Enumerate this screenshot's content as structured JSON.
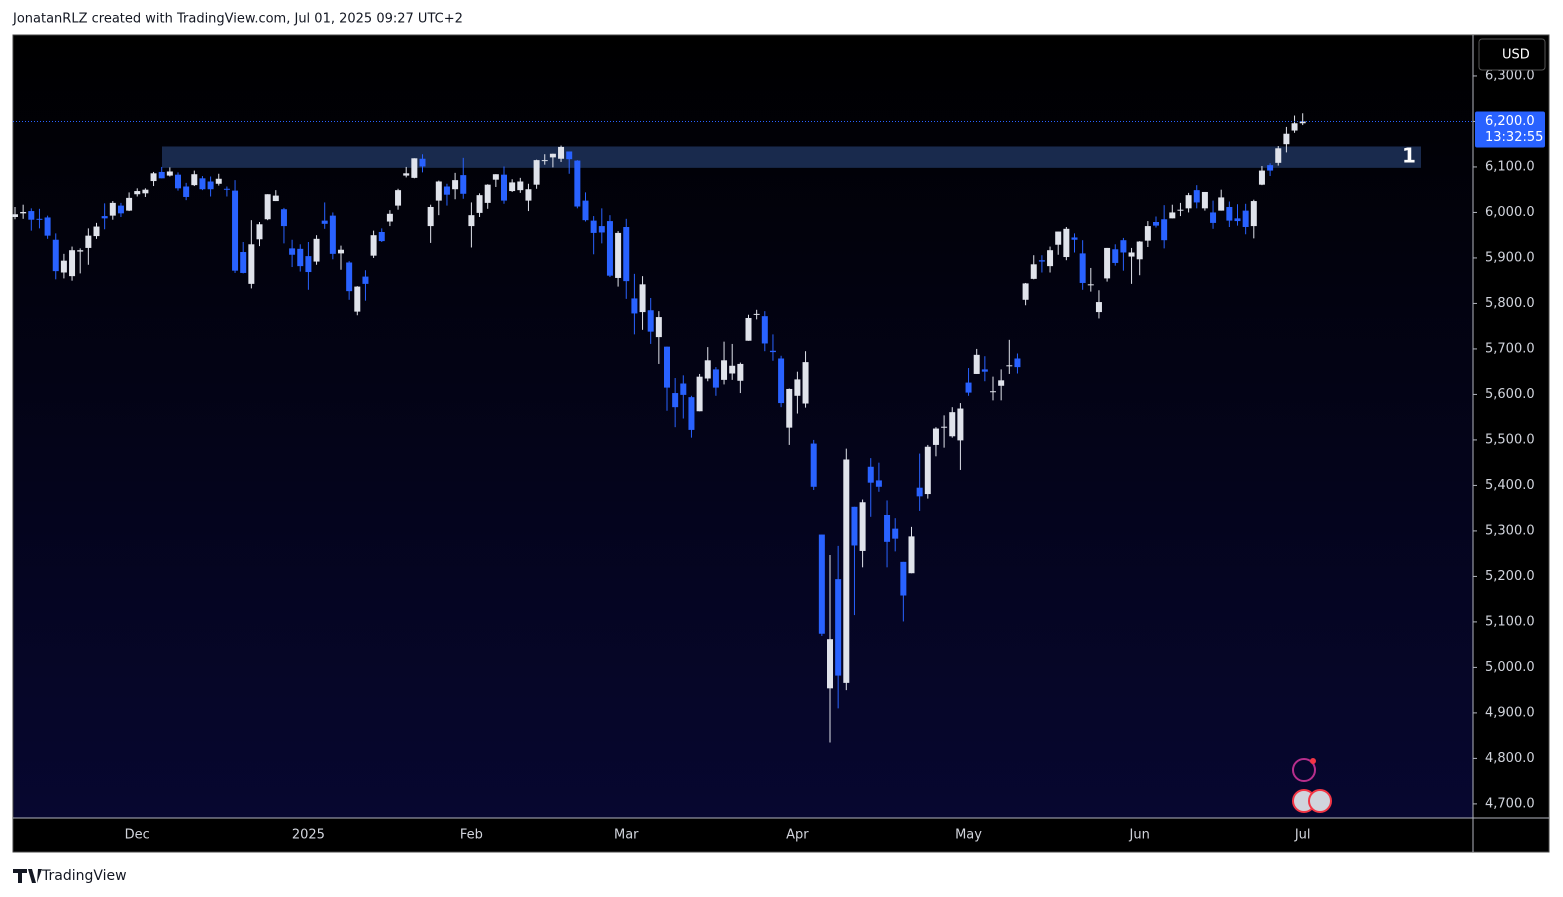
{
  "header": "JonatanRLZ created with TradingView.com, Jul 01, 2025 09:27 UTC+2",
  "footer": "TradingView",
  "chart_data": {
    "type": "candlestick",
    "currency": "USD",
    "categories": [
      null,
      null,
      null,
      null,
      null,
      null,
      null,
      null,
      null,
      null,
      null,
      null,
      null,
      null,
      null,
      "Dec",
      null,
      null,
      null,
      null,
      null,
      null,
      null,
      null,
      null,
      null,
      null,
      null,
      null,
      null,
      null,
      null,
      null,
      null,
      null,
      null,
      "2025",
      null,
      null,
      null,
      null,
      null,
      null,
      null,
      null,
      null,
      null,
      null,
      null,
      null,
      null,
      null,
      null,
      null,
      null,
      null,
      "Feb",
      null,
      null,
      null,
      null,
      null,
      null,
      null,
      null,
      null,
      null,
      null,
      null,
      null,
      null,
      null,
      null,
      null,
      null,
      "Mar",
      null,
      null,
      null,
      null,
      null,
      null,
      null,
      null,
      null,
      null,
      null,
      null,
      null,
      null,
      null,
      null,
      null,
      null,
      null,
      null,
      "Apr",
      null,
      null,
      null,
      null,
      null,
      null,
      null,
      null,
      null,
      null,
      null,
      null,
      null,
      null,
      null,
      null,
      null,
      null,
      null,
      null,
      "May",
      null,
      null,
      null,
      null,
      null,
      null,
      null,
      null,
      null,
      null,
      null,
      null,
      null,
      null,
      null,
      null,
      null,
      null,
      null,
      null,
      "Jun",
      null,
      null,
      null,
      null,
      null,
      null,
      null,
      null,
      null,
      null,
      null,
      null,
      null,
      null,
      null,
      null,
      null,
      null,
      null,
      "Jul"
    ],
    "open": [
      5990,
      5998,
      6003,
      5986,
      5989,
      5940,
      5868,
      5860,
      5914,
      5922,
      5948,
      5992,
      5993,
      6015,
      6004,
      6040,
      6042,
      6069,
      6089,
      6081,
      6083,
      6057,
      6060,
      6075,
      6068,
      6063,
      6052,
      6048,
      5913,
      5843,
      5941,
      5985,
      6025,
      6007,
      5921,
      5920,
      5904,
      5892,
      5982,
      5993,
      5910,
      5890,
      5782,
      5859,
      5905,
      5957,
      5980,
      6015,
      6081,
      6076,
      6118,
      5970,
      6026,
      6057,
      6051,
      6082,
      5970,
      5999,
      6021,
      6072,
      6083,
      6047,
      6049,
      6026,
      6061,
      6115,
      6121,
      6118,
      6134,
      6114,
      6026,
      5982,
      5970,
      5981,
      5856,
      5968,
      5811,
      5781,
      5785,
      5726,
      5705,
      5603,
      5624,
      5594,
      5563,
      5635,
      5655,
      5632,
      5646,
      5630,
      5718,
      5775,
      5772,
      5696,
      5679,
      5527,
      5597,
      5580,
      5492,
      5292,
      4954,
      5194,
      4966,
      5353,
      5256,
      5441,
      5411,
      5335,
      5305,
      5232,
      5207,
      5395,
      5381,
      5489,
      5528,
      5508,
      5499,
      5626,
      5645,
      5655,
      5605,
      5619,
      5663,
      5679,
      5808,
      5854,
      5895,
      5882,
      5929,
      5902,
      5945,
      5910,
      5842,
      5781,
      5855,
      5919,
      5939,
      5903,
      5897,
      5938,
      5979,
      5985,
      5987,
      6004,
      6009,
      6049,
      6009,
      6000,
      6004,
      6012,
      5987,
      6004,
      5970,
      6061,
      6104,
      6109,
      6150,
      6180,
      6196
    ],
    "high": [
      6012,
      6017,
      6009,
      6008,
      5993,
      5954,
      5909,
      5925,
      5921,
      5965,
      5977,
      6020,
      6025,
      6021,
      6044,
      6053,
      6053,
      6089,
      6100,
      6099,
      6088,
      6065,
      6092,
      6080,
      6079,
      6085,
      6057,
      6071,
      5935,
      5983,
      5979,
      6040,
      6049,
      6010,
      5940,
      5930,
      5935,
      5950,
      6022,
      6000,
      5927,
      5893,
      5838,
      5873,
      5960,
      5965,
      6005,
      6052,
      6100,
      6119,
      6128,
      6017,
      6070,
      6063,
      6087,
      6120,
      6022,
      6042,
      6062,
      6084,
      6101,
      6073,
      6076,
      6063,
      6116,
      6128,
      6129,
      6147,
      6134,
      6115,
      6044,
      5992,
      6009,
      5994,
      5959,
      5986,
      5865,
      5860,
      5812,
      5783,
      5705,
      5636,
      5642,
      5597,
      5645,
      5704,
      5660,
      5716,
      5711,
      5670,
      5775,
      5786,
      5783,
      5732,
      5685,
      5613,
      5650,
      5695,
      5500,
      5292,
      5247,
      5267,
      5481,
      5353,
      5369,
      5460,
      5450,
      5367,
      5328,
      5232,
      5309,
      5470,
      5489,
      5528,
      5554,
      5572,
      5581,
      5658,
      5700,
      5684,
      5639,
      5655,
      5720,
      5690,
      5845,
      5906,
      5906,
      5925,
      5958,
      5968,
      5954,
      5939,
      5878,
      5829,
      5922,
      5930,
      5944,
      5922,
      5937,
      5981,
      5991,
      6016,
      6017,
      6021,
      6043,
      6060,
      6045,
      6026,
      6050,
      6024,
      6018,
      6019,
      6028,
      6102,
      6108,
      6146,
      6188,
      6213,
      6218
    ],
    "low": [
      5985,
      5986,
      5960,
      5965,
      5942,
      5853,
      5855,
      5850,
      5866,
      5885,
      5942,
      5963,
      5984,
      5990,
      6003,
      6035,
      6034,
      6058,
      6075,
      6079,
      6048,
      6027,
      6058,
      6049,
      6035,
      6059,
      6035,
      5867,
      5866,
      5833,
      5926,
      5983,
      6025,
      5932,
      5880,
      5870,
      5830,
      5885,
      5964,
      5897,
      5874,
      5808,
      5774,
      5806,
      5900,
      5935,
      5970,
      6006,
      6077,
      6075,
      6088,
      5933,
      5994,
      6015,
      6029,
      6030,
      5923,
      5990,
      6008,
      6056,
      6019,
      6045,
      6043,
      6003,
      6052,
      6105,
      6099,
      6111,
      6085,
      6009,
      5980,
      5908,
      5932,
      5858,
      5837,
      5810,
      5732,
      5742,
      5711,
      5667,
      5564,
      5528,
      5547,
      5505,
      5563,
      5629,
      5597,
      5622,
      5632,
      5603,
      5718,
      5765,
      5695,
      5674,
      5572,
      5489,
      5558,
      5571,
      5390,
      5069,
      4835,
      4910,
      4950,
      5115,
      5220,
      5331,
      5386,
      5220,
      5255,
      5101,
      5207,
      5344,
      5371,
      5464,
      5483,
      5505,
      5434,
      5597,
      5645,
      5629,
      5587,
      5587,
      5645,
      5646,
      5796,
      5853,
      5868,
      5868,
      5907,
      5895,
      5912,
      5830,
      5826,
      5767,
      5848,
      5883,
      5872,
      5843,
      5862,
      5924,
      5967,
      5921,
      5987,
      5992,
      6000,
      6009,
      6004,
      5964,
      6004,
      5968,
      5971,
      5952,
      5943,
      6060,
      6080,
      6103,
      6132,
      6175,
      6192
    ],
    "close": [
      5996,
      6001,
      5984,
      5985,
      5949,
      5871,
      5894,
      5917,
      5917,
      5949,
      5969,
      5987,
      6021,
      5998,
      6032,
      6047,
      6050,
      6086,
      6075,
      6090,
      6053,
      6034,
      6084,
      6051,
      6051,
      6074,
      6050,
      5872,
      5867,
      5930,
      5974,
      6040,
      6037,
      5970,
      5907,
      5882,
      5869,
      5942,
      5975,
      5909,
      5918,
      5827,
      5837,
      5843,
      5950,
      5937,
      5997,
      6049,
      6086,
      6119,
      6101,
      6012,
      6068,
      6039,
      6071,
      6041,
      5994,
      6038,
      6061,
      6084,
      6026,
      6066,
      6068,
      6051,
      6115,
      6115,
      6129,
      6144,
      6117,
      6013,
      5983,
      5955,
      5956,
      5861,
      5955,
      5849,
      5778,
      5842,
      5738,
      5770,
      5615,
      5572,
      5599,
      5522,
      5639,
      5675,
      5615,
      5675,
      5663,
      5667,
      5768,
      5777,
      5712,
      5693,
      5581,
      5612,
      5633,
      5671,
      5397,
      5074,
      5062,
      4982,
      5457,
      5268,
      5363,
      5406,
      5397,
      5276,
      5283,
      5158,
      5288,
      5376,
      5485,
      5525,
      5529,
      5561,
      5569,
      5604,
      5687,
      5650,
      5607,
      5631,
      5664,
      5660,
      5844,
      5886,
      5892,
      5917,
      5958,
      5964,
      5940,
      5845,
      5842,
      5803,
      5922,
      5889,
      5912,
      5912,
      5936,
      5970,
      5971,
      5939,
      6000,
      6006,
      6038,
      6022,
      6045,
      5977,
      6033,
      5982,
      5981,
      5968,
      6025,
      6092,
      6092,
      6141,
      6173,
      6196,
      6200
    ],
    "up_color": "#e0e3eb",
    "down_color": "#2962ff",
    "ylim": [
      4669,
      6390
    ],
    "yticks": [
      {
        "value": 4700,
        "label": "4,700.0"
      },
      {
        "value": 4800,
        "label": "4,800.0"
      },
      {
        "value": 4900,
        "label": "4,900.0"
      },
      {
        "value": 5000,
        "label": "5,000.0"
      },
      {
        "value": 5100,
        "label": "5,100.0"
      },
      {
        "value": 5200,
        "label": "5,200.0"
      },
      {
        "value": 5300,
        "label": "5,300.0"
      },
      {
        "value": 5400,
        "label": "5,400.0"
      },
      {
        "value": 5500,
        "label": "5,500.0"
      },
      {
        "value": 5600,
        "label": "5,600.0"
      },
      {
        "value": 5700,
        "label": "5,700.0"
      },
      {
        "value": 5800,
        "label": "5,800.0"
      },
      {
        "value": 5900,
        "label": "5,900.0"
      },
      {
        "value": 6000,
        "label": "6,000.0"
      },
      {
        "value": 6100,
        "label": "6,100.0"
      },
      {
        "value": 6200,
        "label": "6,200.0"
      },
      {
        "value": 6300,
        "label": "6,300.0"
      }
    ],
    "grid": false,
    "zone": {
      "label": "1",
      "top": 6145,
      "bottom": 6098,
      "color": "#1c2f55"
    },
    "last_price": {
      "value": 6200,
      "label": "6,200.0",
      "countdown": "13:32:55",
      "color": "#2962ff"
    }
  }
}
